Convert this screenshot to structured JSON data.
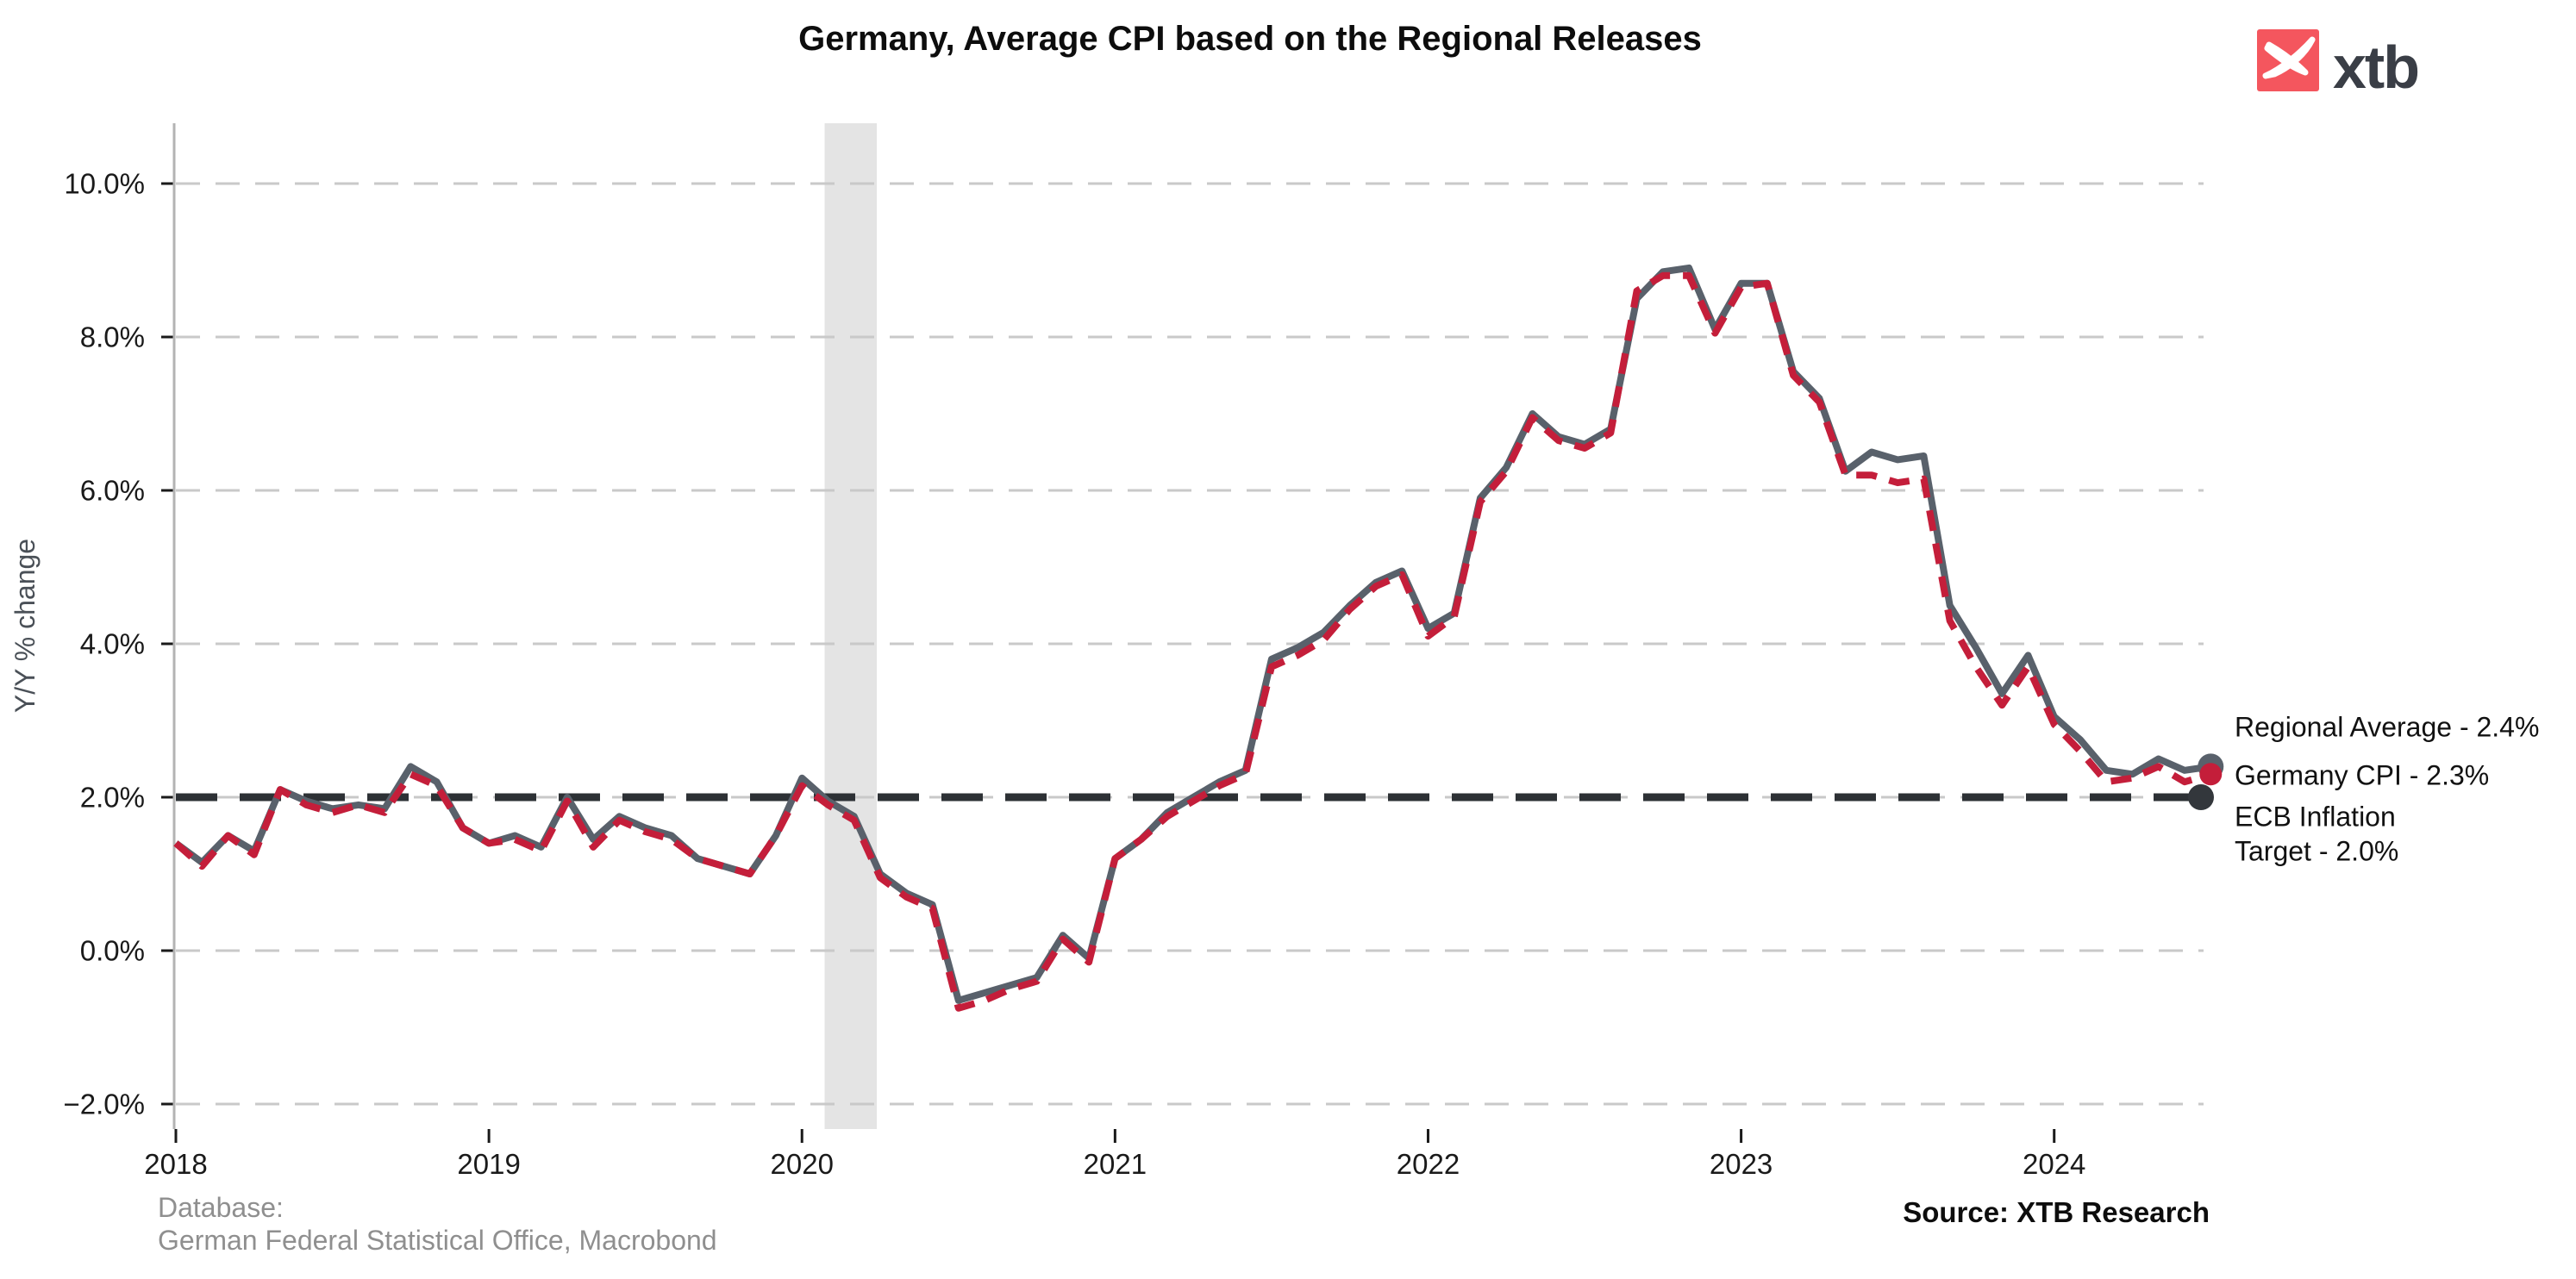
{
  "header": {
    "logo_text": "xtb",
    "logo_square_color": "#f4565e",
    "logo_icon": "xtb-bird-icon"
  },
  "annotations": {
    "regional": "Regional Average - 2.4%",
    "germany": "Germany CPI - 2.3%",
    "ecb_line1": "ECB Inflation",
    "ecb_line2": "Target - 2.0%"
  },
  "footer": {
    "database_label": "Database:",
    "database_value": "German Federal Statistical Office, Macrobond",
    "source": "Source: XTB Research"
  },
  "chart_data": {
    "type": "line",
    "title": "Germany, Average CPI based on the Regional Releases",
    "xlabel": "",
    "ylabel": "Y/Y % change",
    "ylim": [
      -2.4,
      10.8
    ],
    "grid": true,
    "legend_position": "right",
    "x_start": "2018-01",
    "x_freq": "monthly",
    "x_tick_labels": [
      "2018",
      "2019",
      "2020",
      "2021",
      "2022",
      "2023",
      "2024"
    ],
    "y_tick_values": [
      10,
      8,
      6,
      4,
      2,
      0,
      -2
    ],
    "y_tick_labels": [
      "10.0%",
      "8.0%",
      "6.0%",
      "4.0%",
      "2.0%",
      "0.0%",
      "−2.0%"
    ],
    "recession_band": {
      "from": "2020-02",
      "to": "2020-04",
      "color": "#e4e4e4"
    },
    "target_line": {
      "name": "ECB Inflation Target",
      "value": 2.0,
      "color": "#2d3135",
      "style": "dashed",
      "end_value_label": "2.0%"
    },
    "series": [
      {
        "name": "Regional Average",
        "color": "#59616b",
        "style": "solid",
        "end_value_label": "2.4%",
        "values": [
          1.4,
          1.15,
          1.5,
          1.3,
          2.1,
          1.95,
          1.85,
          1.9,
          1.85,
          2.4,
          2.2,
          1.6,
          1.4,
          1.5,
          1.35,
          2.0,
          1.45,
          1.75,
          1.6,
          1.5,
          1.2,
          1.1,
          1.0,
          1.5,
          2.25,
          1.95,
          1.75,
          1.0,
          0.75,
          0.6,
          -0.65,
          -0.55,
          -0.45,
          -0.35,
          0.2,
          -0.1,
          1.2,
          1.45,
          1.8,
          2.0,
          2.2,
          2.35,
          3.8,
          3.95,
          4.15,
          4.5,
          4.8,
          4.95,
          4.2,
          4.4,
          5.9,
          6.3,
          7.0,
          6.7,
          6.6,
          6.8,
          8.5,
          8.85,
          8.9,
          8.1,
          8.7,
          8.7,
          7.55,
          7.2,
          6.25,
          6.5,
          6.4,
          6.45,
          4.5,
          3.95,
          3.35,
          3.85,
          3.05,
          2.75,
          2.35,
          2.3,
          2.5,
          2.35,
          2.4
        ]
      },
      {
        "name": "Germany CPI",
        "color": "#c41e3a",
        "style": "dashed",
        "end_value_label": "2.3%",
        "values": [
          1.4,
          1.1,
          1.5,
          1.25,
          2.1,
          1.9,
          1.8,
          1.9,
          1.8,
          2.3,
          2.15,
          1.6,
          1.4,
          1.45,
          1.3,
          1.95,
          1.35,
          1.7,
          1.55,
          1.45,
          1.2,
          1.1,
          1.0,
          1.5,
          2.15,
          1.9,
          1.7,
          0.95,
          0.7,
          0.55,
          -0.75,
          -0.65,
          -0.5,
          -0.4,
          0.15,
          -0.15,
          1.2,
          1.45,
          1.75,
          1.95,
          2.15,
          2.3,
          3.7,
          3.85,
          4.05,
          4.45,
          4.75,
          4.9,
          4.1,
          4.35,
          5.85,
          6.25,
          6.95,
          6.65,
          6.55,
          6.75,
          8.6,
          8.8,
          8.8,
          8.05,
          8.65,
          8.7,
          7.5,
          7.15,
          6.2,
          6.2,
          6.1,
          6.15,
          4.3,
          3.7,
          3.2,
          3.7,
          2.95,
          2.6,
          2.2,
          2.25,
          2.4,
          2.2,
          2.3
        ]
      }
    ]
  }
}
